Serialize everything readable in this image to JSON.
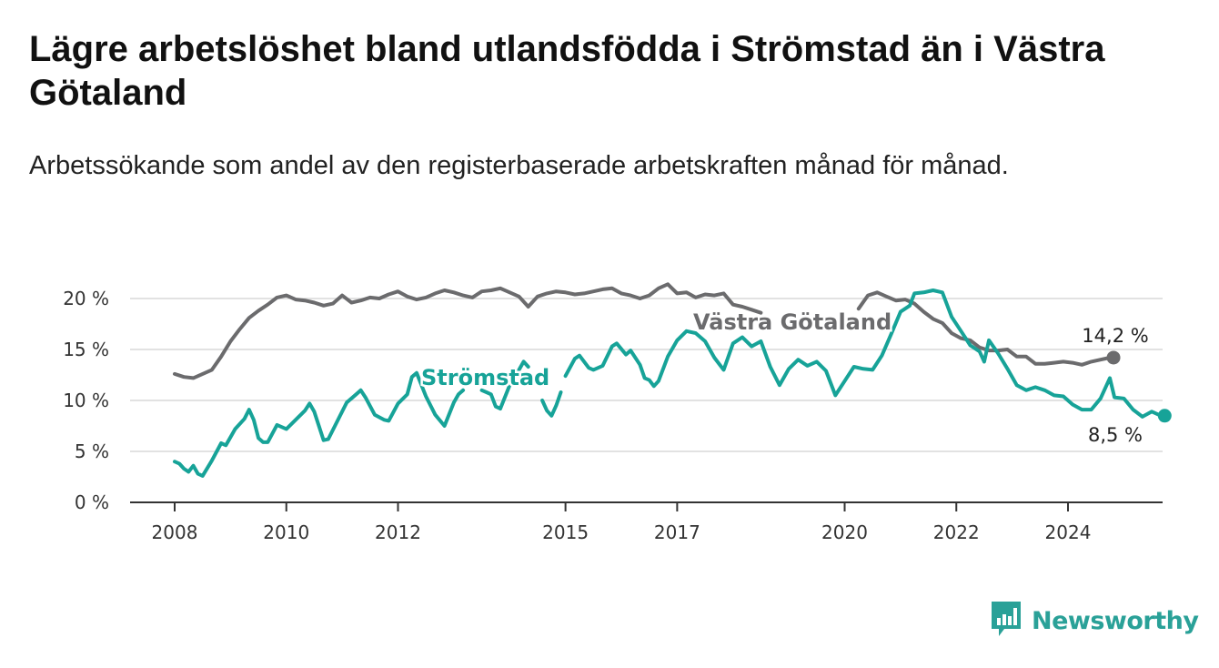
{
  "title": "Lägre arbetslöshet bland utlandsfödda i Strömstad än i Västra Götaland",
  "subtitle": "Arbetssökande som andel av den registerbaserade arbetskraften månad för månad.",
  "logo_text": "Newsworthy",
  "colors": {
    "stromstad": "#17a398",
    "vastra": "#6b6b6d",
    "grid": "#d9d9d9",
    "axis": "#333333"
  },
  "chart_data": {
    "type": "line",
    "title": "Lägre arbetslöshet bland utlandsfödda i Strömstad än i Västra Götaland",
    "subtitle": "Arbetssökande som andel av den registerbaserade arbetskraften månad för månad.",
    "xlabel": "",
    "ylabel": "",
    "y_ticks": [
      "0 %",
      "5 %",
      "10 %",
      "15 %",
      "20 %"
    ],
    "x_ticks": [
      "2008",
      "2010",
      "2012",
      "2015",
      "2017",
      "2020",
      "2022",
      "2024"
    ],
    "ylim": [
      0,
      20
    ],
    "grid": "horizontal",
    "series": [
      {
        "name": "Västra Götaland",
        "end_label": "14,2 %",
        "points": [
          [
            "2008-01",
            12.6
          ],
          [
            "2008-03",
            12.3
          ],
          [
            "2008-05",
            12.2
          ],
          [
            "2008-07",
            12.6
          ],
          [
            "2008-09",
            13.0
          ],
          [
            "2008-11",
            14.3
          ],
          [
            "2009-01",
            15.8
          ],
          [
            "2009-03",
            17.0
          ],
          [
            "2009-05",
            18.1
          ],
          [
            "2009-07",
            18.8
          ],
          [
            "2009-09",
            19.4
          ],
          [
            "2009-11",
            20.1
          ],
          [
            "2010-01",
            20.3
          ],
          [
            "2010-03",
            19.9
          ],
          [
            "2010-05",
            19.8
          ],
          [
            "2010-07",
            19.6
          ],
          [
            "2010-09",
            19.3
          ],
          [
            "2010-11",
            19.5
          ],
          [
            "2011-01",
            20.3
          ],
          [
            "2011-03",
            19.6
          ],
          [
            "2011-05",
            19.8
          ],
          [
            "2011-07",
            20.1
          ],
          [
            "2011-09",
            20.0
          ],
          [
            "2011-11",
            20.4
          ],
          [
            "2012-01",
            20.7
          ],
          [
            "2012-03",
            20.2
          ],
          [
            "2012-05",
            19.9
          ],
          [
            "2012-07",
            20.1
          ],
          [
            "2012-09",
            20.5
          ],
          [
            "2012-11",
            20.8
          ],
          [
            "2013-01",
            20.6
          ],
          [
            "2013-03",
            20.3
          ],
          [
            "2013-05",
            20.1
          ],
          [
            "2013-07",
            20.7
          ],
          [
            "2013-09",
            20.8
          ],
          [
            "2013-11",
            21.0
          ],
          [
            "2014-01",
            20.6
          ],
          [
            "2014-03",
            20.2
          ],
          [
            "2014-05",
            19.2
          ],
          [
            "2014-07",
            20.2
          ],
          [
            "2014-09",
            20.5
          ],
          [
            "2014-11",
            20.7
          ],
          [
            "2015-01",
            20.6
          ],
          [
            "2015-03",
            20.4
          ],
          [
            "2015-05",
            20.5
          ],
          [
            "2015-07",
            20.7
          ],
          [
            "2015-09",
            20.9
          ],
          [
            "2015-11",
            21.0
          ],
          [
            "2016-01",
            20.5
          ],
          [
            "2016-03",
            20.3
          ],
          [
            "2016-05",
            20.0
          ],
          [
            "2016-07",
            20.3
          ],
          [
            "2016-09",
            21.0
          ],
          [
            "2016-11",
            21.4
          ],
          [
            "2017-01",
            20.5
          ],
          [
            "2017-03",
            20.6
          ],
          [
            "2017-05",
            20.1
          ],
          [
            "2017-07",
            20.4
          ],
          [
            "2017-09",
            20.3
          ],
          [
            "2017-11",
            20.5
          ],
          [
            "2018-01",
            19.4
          ],
          [
            "2018-03",
            19.2
          ],
          [
            "2018-05",
            18.9
          ],
          [
            "2018-07",
            18.6
          ]
        ],
        "points_after_label": [
          [
            "2020-04",
            19.0
          ],
          [
            "2020-06",
            20.3
          ],
          [
            "2020-08",
            20.6
          ],
          [
            "2020-10",
            20.2
          ],
          [
            "2020-12",
            19.8
          ],
          [
            "2021-02",
            19.9
          ],
          [
            "2021-04",
            19.5
          ],
          [
            "2021-06",
            18.7
          ],
          [
            "2021-08",
            18.0
          ],
          [
            "2021-10",
            17.6
          ],
          [
            "2021-12",
            16.6
          ],
          [
            "2022-02",
            16.1
          ],
          [
            "2022-04",
            15.9
          ],
          [
            "2022-06",
            15.2
          ],
          [
            "2022-08",
            14.9
          ],
          [
            "2022-10",
            14.9
          ],
          [
            "2022-12",
            15.0
          ],
          [
            "2023-02",
            14.3
          ],
          [
            "2023-04",
            14.3
          ],
          [
            "2023-06",
            13.6
          ],
          [
            "2023-08",
            13.6
          ],
          [
            "2023-10",
            13.7
          ],
          [
            "2023-12",
            13.8
          ],
          [
            "2024-02",
            13.7
          ],
          [
            "2024-04",
            13.5
          ],
          [
            "2024-06",
            13.8
          ],
          [
            "2024-08",
            14.0
          ],
          [
            "2024-10",
            14.2
          ]
        ]
      },
      {
        "name": "Strömstad",
        "end_label": "8,5 %",
        "segments": [
          [
            [
              "2008-01",
              4.0
            ],
            [
              "2008-02",
              3.8
            ],
            [
              "2008-03",
              3.3
            ],
            [
              "2008-04",
              3.0
            ],
            [
              "2008-05",
              3.6
            ],
            [
              "2008-06",
              2.8
            ],
            [
              "2008-07",
              2.6
            ],
            [
              "2008-09",
              4.1
            ],
            [
              "2008-11",
              5.8
            ],
            [
              "2008-12",
              5.6
            ],
            [
              "2009-02",
              7.2
            ],
            [
              "2009-04",
              8.2
            ],
            [
              "2009-05",
              9.1
            ],
            [
              "2009-06",
              8.1
            ],
            [
              "2009-07",
              6.3
            ],
            [
              "2009-08",
              5.9
            ],
            [
              "2009-09",
              5.9
            ],
            [
              "2009-11",
              7.6
            ],
            [
              "2010-01",
              7.2
            ],
            [
              "2010-03",
              8.1
            ],
            [
              "2010-05",
              9.0
            ],
            [
              "2010-06",
              9.7
            ],
            [
              "2010-07",
              8.9
            ],
            [
              "2010-09",
              6.1
            ],
            [
              "2010-10",
              6.2
            ],
            [
              "2010-12",
              8.0
            ],
            [
              "2011-02",
              9.8
            ],
            [
              "2011-04",
              10.6
            ],
            [
              "2011-05",
              11.0
            ],
            [
              "2011-06",
              10.3
            ],
            [
              "2011-08",
              8.6
            ],
            [
              "2011-10",
              8.1
            ],
            [
              "2011-11",
              8.0
            ],
            [
              "2012-01",
              9.7
            ],
            [
              "2012-03",
              10.6
            ],
            [
              "2012-04",
              12.3
            ],
            [
              "2012-05",
              12.7
            ],
            [
              "2012-07",
              10.4
            ],
            [
              "2012-09",
              8.6
            ],
            [
              "2012-11",
              7.5
            ],
            [
              "2013-01",
              9.8
            ],
            [
              "2013-02",
              10.6
            ],
            [
              "2013-03",
              11.0
            ]
          ],
          [
            [
              "2013-07",
              11.0
            ],
            [
              "2013-08",
              10.8
            ],
            [
              "2013-09",
              10.6
            ],
            [
              "2013-10",
              9.4
            ],
            [
              "2013-11",
              9.2
            ],
            [
              "2014-01",
              11.5
            ],
            [
              "2014-03",
              13.0
            ],
            [
              "2014-04",
              13.8
            ],
            [
              "2014-05",
              13.3
            ]
          ],
          [
            [
              "2014-08",
              10.0
            ],
            [
              "2014-09",
              9.0
            ],
            [
              "2014-10",
              8.5
            ],
            [
              "2014-11",
              9.5
            ],
            [
              "2014-12",
              10.8
            ]
          ],
          [
            [
              "2015-01",
              12.4
            ],
            [
              "2015-03",
              14.1
            ],
            [
              "2015-04",
              14.4
            ],
            [
              "2015-06",
              13.2
            ],
            [
              "2015-07",
              13.0
            ],
            [
              "2015-09",
              13.4
            ],
            [
              "2015-11",
              15.3
            ],
            [
              "2015-12",
              15.6
            ],
            [
              "2016-02",
              14.5
            ],
            [
              "2016-03",
              14.9
            ],
            [
              "2016-05",
              13.5
            ],
            [
              "2016-06",
              12.2
            ],
            [
              "2016-07",
              12.0
            ],
            [
              "2016-08",
              11.4
            ],
            [
              "2016-09",
              11.9
            ],
            [
              "2016-11",
              14.3
            ],
            [
              "2017-01",
              15.9
            ],
            [
              "2017-03",
              16.8
            ],
            [
              "2017-05",
              16.6
            ],
            [
              "2017-07",
              15.8
            ],
            [
              "2017-09",
              14.2
            ],
            [
              "2017-11",
              13.0
            ],
            [
              "2018-01",
              15.6
            ],
            [
              "2018-03",
              16.2
            ],
            [
              "2018-05",
              15.3
            ],
            [
              "2018-07",
              15.8
            ],
            [
              "2018-09",
              13.3
            ],
            [
              "2018-11",
              11.5
            ],
            [
              "2019-01",
              13.1
            ],
            [
              "2019-03",
              14.0
            ],
            [
              "2019-05",
              13.4
            ],
            [
              "2019-07",
              13.8
            ],
            [
              "2019-09",
              12.9
            ],
            [
              "2019-11",
              10.5
            ],
            [
              "2020-01",
              11.9
            ],
            [
              "2020-03",
              13.3
            ],
            [
              "2020-05",
              13.1
            ],
            [
              "2020-07",
              13.0
            ],
            [
              "2020-09",
              14.4
            ],
            [
              "2020-11",
              16.5
            ],
            [
              "2021-01",
              18.7
            ],
            [
              "2021-03",
              19.3
            ],
            [
              "2021-04",
              20.5
            ],
            [
              "2021-06",
              20.6
            ],
            [
              "2021-08",
              20.8
            ],
            [
              "2021-10",
              20.6
            ],
            [
              "2021-12",
              18.2
            ],
            [
              "2022-02",
              16.8
            ],
            [
              "2022-04",
              15.4
            ],
            [
              "2022-06",
              14.8
            ],
            [
              "2022-07",
              13.8
            ],
            [
              "2022-08",
              15.9
            ],
            [
              "2022-10",
              14.6
            ],
            [
              "2022-12",
              13.1
            ],
            [
              "2023-02",
              11.5
            ],
            [
              "2023-04",
              11.0
            ],
            [
              "2023-06",
              11.3
            ],
            [
              "2023-08",
              11.0
            ],
            [
              "2023-10",
              10.5
            ],
            [
              "2023-12",
              10.4
            ],
            [
              "2024-02",
              9.6
            ],
            [
              "2024-04",
              9.1
            ],
            [
              "2024-06",
              9.1
            ],
            [
              "2024-08",
              10.2
            ],
            [
              "2024-10",
              12.2
            ],
            [
              "2024-11",
              10.3
            ],
            [
              "2025-01",
              10.2
            ],
            [
              "2025-03",
              9.1
            ],
            [
              "2025-05",
              8.4
            ],
            [
              "2025-07",
              8.9
            ],
            [
              "2025-09",
              8.5
            ]
          ]
        ]
      }
    ]
  }
}
